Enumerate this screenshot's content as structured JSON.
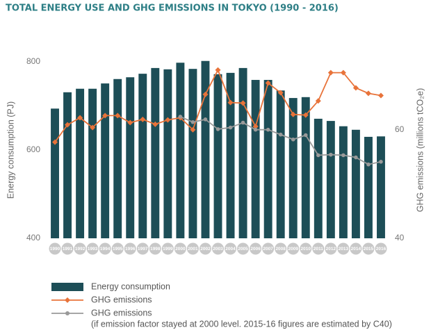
{
  "chart_data": {
    "type": "bar",
    "title": "TOTAL ENERGY USE AND GHG EMISSIONS IN TOKYO (1990 - 2016)",
    "y_label": "Energy consumption (PJ)",
    "y2_label": "GHG emissions (millions tCO₂e)",
    "categories": [
      "1990",
      "1991",
      "1992",
      "1993",
      "1994",
      "1995",
      "1996",
      "1997",
      "1998",
      "1999",
      "2000",
      "2001",
      "2002",
      "2003",
      "2004",
      "2005",
      "2006",
      "2007",
      "2008",
      "2009",
      "2010",
      "2011",
      "2012",
      "2013",
      "2014",
      "2015",
      "2016"
    ],
    "ylim": [
      400,
      800
    ],
    "yticks": [
      400,
      600,
      800
    ],
    "y2lim": [
      40,
      72.5
    ],
    "y2ticks": [
      40,
      60
    ],
    "series": [
      {
        "name": "Energy consumption",
        "type": "bar",
        "color": "#1d4e57",
        "values": [
          694,
          731,
          739,
          739,
          751,
          761,
          765,
          773,
          786,
          783,
          798,
          784,
          802,
          772,
          775,
          786,
          759,
          759,
          735,
          718,
          720,
          671,
          666,
          654,
          646,
          630,
          631
        ]
      },
      {
        "name": "GHG emissions",
        "type": "line",
        "axis": "y2",
        "color": "#e8733a",
        "marker": "diamond",
        "values": [
          57.7,
          60.9,
          62.2,
          60.4,
          62.6,
          62.6,
          61.3,
          61.9,
          61.0,
          61.8,
          62.2,
          60.0,
          66.5,
          71.0,
          65.0,
          64.9,
          60.6,
          68.6,
          66.8,
          62.8,
          62.7,
          65.3,
          70.5,
          70.5,
          67.7,
          66.7,
          66.3
        ]
      },
      {
        "name": "GHG emissions",
        "type": "line",
        "axis": "y2",
        "color": "#9a9a9a",
        "marker": "circle",
        "note": "(if emission factor stayed at 2000 level. 2015-16 figures are estimated by C40)",
        "values": [
          null,
          null,
          null,
          null,
          null,
          null,
          null,
          null,
          null,
          null,
          62.4,
          61.4,
          61.9,
          60.1,
          60.4,
          61.3,
          60.0,
          60.0,
          59.1,
          58.2,
          59.0,
          55.3,
          55.4,
          55.3,
          54.9,
          53.6,
          54.1
        ]
      }
    ]
  }
}
